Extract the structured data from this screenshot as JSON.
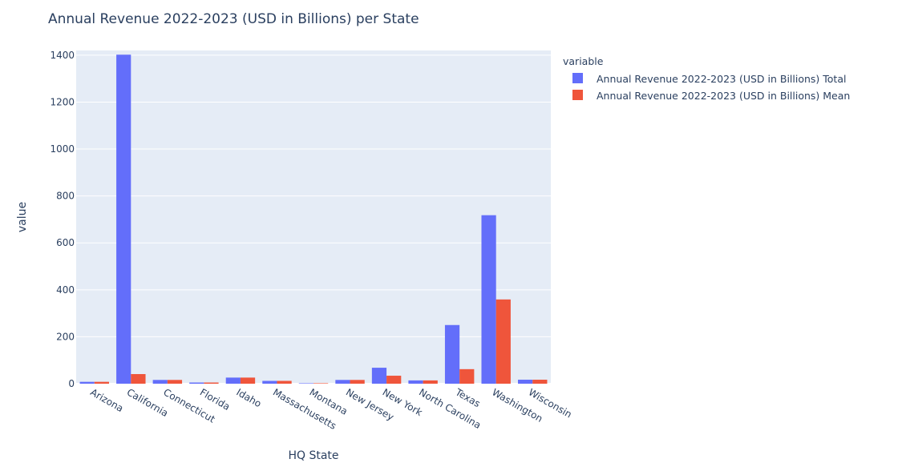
{
  "chart_data": {
    "type": "bar",
    "title": "Annual Revenue 2022-2023 (USD in Billions) per State",
    "xlabel": "HQ State",
    "ylabel": "value",
    "ylim": [
      0,
      1420
    ],
    "yticks": [
      0,
      200,
      400,
      600,
      800,
      1000,
      1200,
      1400
    ],
    "grid": true,
    "barmode": "group",
    "legend_title": "variable",
    "legend_position": "top-right",
    "categories": [
      "Arizona",
      "California",
      "Connecticut",
      "Florida",
      "Idaho",
      "Massachusetts",
      "Montana",
      "New Jersey",
      "New York",
      "North Carolina",
      "Texas",
      "Washington",
      "Wisconsin"
    ],
    "series": [
      {
        "name": "Annual Revenue 2022-2023 (USD in Billions) Total",
        "color": "#636efa",
        "values": [
          8,
          1402,
          16,
          5,
          26,
          12,
          2,
          16,
          68,
          14,
          250,
          718,
          17
        ]
      },
      {
        "name": "Annual Revenue 2022-2023 (USD in Billions) Mean",
        "color": "#ef553b",
        "values": [
          8,
          41,
          16,
          5,
          26,
          12,
          2,
          16,
          34,
          14,
          62,
          359,
          17
        ]
      }
    ]
  }
}
